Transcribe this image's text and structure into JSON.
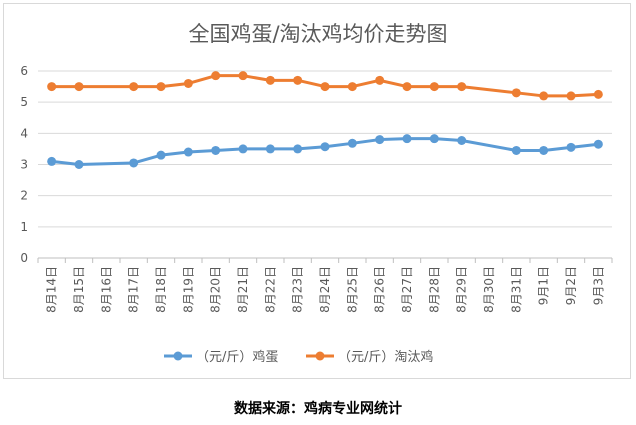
{
  "chart_data": {
    "type": "line",
    "title": "全国鸡蛋/淘汰鸡均价走势图",
    "categories": [
      "8月14日",
      "8月15日",
      "8月16日",
      "8月17日",
      "8月18日",
      "8月19日",
      "8月20日",
      "8月21日",
      "8月22日",
      "8月23日",
      "8月24日",
      "8月25日",
      "8月26日",
      "8月27日",
      "8月28日",
      "8月29日",
      "8月30日",
      "8月31日",
      "9月1日",
      "9月2日",
      "9月3日"
    ],
    "series": [
      {
        "name": "（元/斤）鸡蛋",
        "color": "#5b9bd5",
        "values": [
          3.1,
          3.0,
          null,
          3.05,
          3.3,
          3.4,
          3.45,
          3.5,
          3.5,
          3.5,
          3.57,
          3.68,
          3.8,
          3.83,
          3.83,
          3.77,
          null,
          3.45,
          3.45,
          3.55,
          3.65
        ]
      },
      {
        "name": "（元/斤）淘汰鸡",
        "color": "#ed7d31",
        "values": [
          5.5,
          5.5,
          null,
          5.5,
          5.5,
          5.6,
          5.85,
          5.85,
          5.7,
          5.7,
          5.5,
          5.5,
          5.7,
          5.5,
          5.5,
          5.5,
          null,
          5.3,
          5.2,
          5.2,
          5.25
        ]
      }
    ],
    "ylim": [
      0,
      6
    ],
    "yticks": [
      0,
      1,
      2,
      3,
      4,
      5,
      6
    ],
    "grid": true,
    "legend": "bottom"
  },
  "source": "数据来源：鸡病专业网统计"
}
